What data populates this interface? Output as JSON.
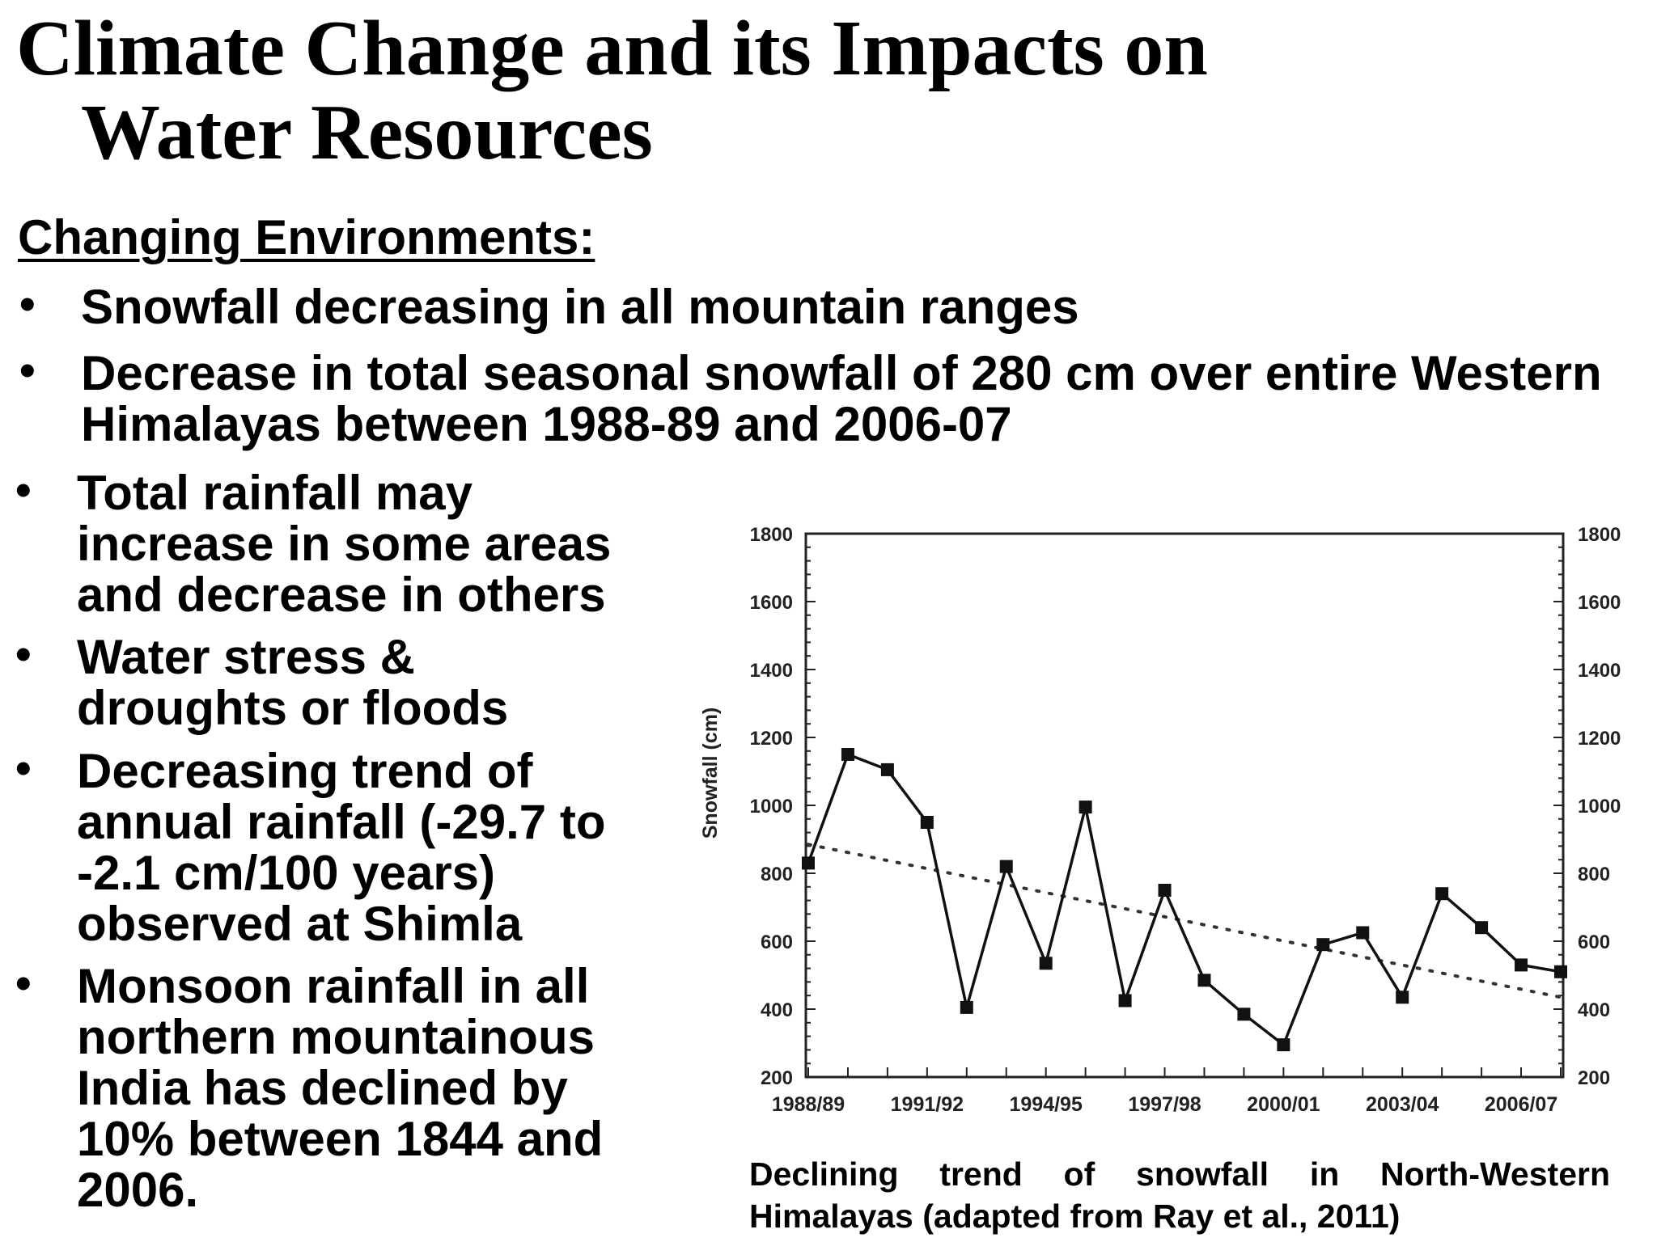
{
  "slide": {
    "title_line1": "Climate Change and its Impacts on",
    "title_line2": "Water Resources",
    "subheading": "Changing Environments:",
    "bullets_full": [
      "Snowfall decreasing in all mountain ranges",
      "Decrease in total seasonal snowfall of 280 cm over entire Western Himalayas between 1988-89 and 2006-07"
    ],
    "bullets_left": [
      "Total rainfall may increase in some areas and decrease in others",
      "Water stress & droughts or floods",
      "Decreasing trend of annual rainfall (-29.7 to -2.1 cm/100 years) observed at Shimla",
      "Monsoon rainfall in all northern mountainous India has declined by 10% between 1844 and 2006."
    ],
    "bullet_glyph": "•",
    "caption": "Declining trend of snowfall in North-Western Himalayas (adapted from Ray et al., 2011)"
  },
  "chart_data": {
    "type": "line",
    "ylabel": "Snowfall (cm)",
    "ylim": [
      200,
      1800
    ],
    "yticks": [
      200,
      400,
      600,
      800,
      1000,
      1200,
      1400,
      1600,
      1800
    ],
    "x_tick_labels": [
      "1988/89",
      "1991/92",
      "1994/95",
      "1997/98",
      "2000/01",
      "2003/04",
      "2006/07"
    ],
    "x": [
      "1988/89",
      "1989/90",
      "1990/91",
      "1991/92",
      "1992/93",
      "1993/94",
      "1994/95",
      "1995/96",
      "1996/97",
      "1997/98",
      "1998/99",
      "1999/00",
      "2000/01",
      "2001/02",
      "2002/03",
      "2003/04",
      "2004/05",
      "2005/06",
      "2006/07",
      "2007/08"
    ],
    "series": [
      {
        "values": [
          830,
          1150,
          1105,
          950,
          405,
          820,
          535,
          995,
          425,
          750,
          485,
          385,
          295,
          590,
          625,
          435,
          740,
          640,
          530,
          510
        ]
      }
    ],
    "trendline": {
      "style": "dotted",
      "start": 885,
      "end": 435
    },
    "right_axis_mirrors_left": true,
    "grid": false
  }
}
